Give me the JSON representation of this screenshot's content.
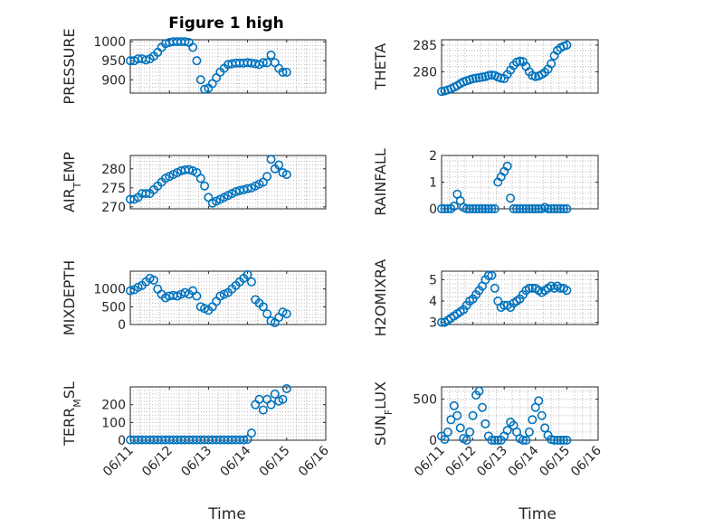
{
  "figure": {
    "title": "Figure 1 high",
    "xlabel": "Time",
    "xticks": [
      "06/11",
      "06/12",
      "06/13",
      "06/14",
      "06/15",
      "06/16"
    ],
    "marker_color": "#0072bd"
  },
  "chart_data": [
    {
      "type": "scatter",
      "ylabel": "PRESSURE",
      "xlim": [
        0,
        5
      ],
      "ylim": [
        865,
        1005
      ],
      "yticks": [
        900,
        950,
        1000
      ],
      "xtick_labels_visible": false,
      "title": "Figure 1 high",
      "x": [
        0,
        0.1,
        0.2,
        0.3,
        0.4,
        0.5,
        0.6,
        0.7,
        0.8,
        0.9,
        1.0,
        1.1,
        1.2,
        1.3,
        1.4,
        1.5,
        1.6,
        1.7,
        1.8,
        1.9,
        2.0,
        2.1,
        2.2,
        2.3,
        2.4,
        2.5,
        2.6,
        2.7,
        2.8,
        2.9,
        3.0,
        3.1,
        3.2,
        3.3,
        3.4,
        3.5,
        3.6,
        3.7,
        3.8,
        3.9,
        4.0
      ],
      "y": [
        950,
        950,
        955,
        955,
        952,
        955,
        962,
        972,
        985,
        995,
        998,
        1000,
        1000,
        1000,
        1000,
        998,
        985,
        950,
        900,
        875,
        878,
        890,
        905,
        920,
        930,
        940,
        942,
        944,
        944,
        944,
        945,
        944,
        942,
        940,
        945,
        945,
        965,
        945,
        930,
        920,
        920
      ]
    },
    {
      "type": "scatter",
      "ylabel": "THETA",
      "xlim": [
        0,
        5
      ],
      "ylim": [
        276,
        286
      ],
      "yticks": [
        280,
        285
      ],
      "xtick_labels_visible": false,
      "x": [
        0,
        0.1,
        0.2,
        0.3,
        0.4,
        0.5,
        0.6,
        0.7,
        0.8,
        0.9,
        1.0,
        1.1,
        1.2,
        1.3,
        1.4,
        1.5,
        1.6,
        1.7,
        1.8,
        1.9,
        2.0,
        2.1,
        2.2,
        2.3,
        2.4,
        2.5,
        2.6,
        2.7,
        2.8,
        2.9,
        3.0,
        3.1,
        3.2,
        3.3,
        3.4,
        3.5,
        3.6,
        3.7,
        3.8,
        3.9,
        4.0
      ],
      "y": [
        276.3,
        276.4,
        276.6,
        276.8,
        277.1,
        277.4,
        277.8,
        278.1,
        278.3,
        278.5,
        278.7,
        278.8,
        278.9,
        279.0,
        279.1,
        279.3,
        279.4,
        279.3,
        279.0,
        278.8,
        278.7,
        279.5,
        280.3,
        281.2,
        281.8,
        282.0,
        281.9,
        281.0,
        280.0,
        279.3,
        279.1,
        279.2,
        279.5,
        279.9,
        280.5,
        281.5,
        283.0,
        284.0,
        284.5,
        284.8,
        285.0
      ]
    },
    {
      "type": "scatter",
      "ylabel": "AIR_TEMP",
      "xlim": [
        0,
        5
      ],
      "ylim": [
        269.5,
        283.5
      ],
      "yticks": [
        270,
        275,
        280
      ],
      "xtick_labels_visible": false,
      "x": [
        0,
        0.1,
        0.2,
        0.3,
        0.4,
        0.5,
        0.6,
        0.7,
        0.8,
        0.9,
        1.0,
        1.1,
        1.2,
        1.3,
        1.4,
        1.5,
        1.6,
        1.7,
        1.8,
        1.9,
        2.0,
        2.1,
        2.2,
        2.3,
        2.4,
        2.5,
        2.6,
        2.7,
        2.8,
        2.9,
        3.0,
        3.1,
        3.2,
        3.3,
        3.4,
        3.5,
        3.6,
        3.7,
        3.8,
        3.9,
        4.0
      ],
      "y": [
        272,
        272,
        272.5,
        273.5,
        273.5,
        273.5,
        274.5,
        275.5,
        276.5,
        277.5,
        278,
        278.5,
        279,
        279.5,
        279.7,
        279.8,
        279.5,
        279,
        277.5,
        275.5,
        272.5,
        271,
        271.5,
        272,
        272.5,
        273,
        273.5,
        274,
        274.3,
        274.5,
        274.8,
        275,
        275.5,
        276,
        276.5,
        278,
        282.5,
        280,
        281,
        279,
        278.5
      ]
    },
    {
      "type": "scatter",
      "ylabel": "RAINFALL",
      "xlim": [
        0,
        5
      ],
      "ylim": [
        0,
        2
      ],
      "yticks": [
        0,
        1,
        2
      ],
      "xtick_labels_visible": false,
      "x": [
        0,
        0.1,
        0.2,
        0.3,
        0.4,
        0.5,
        0.6,
        0.7,
        0.8,
        0.9,
        1.0,
        1.1,
        1.2,
        1.3,
        1.4,
        1.5,
        1.6,
        1.7,
        1.8,
        1.9,
        2.0,
        2.1,
        2.2,
        2.3,
        2.4,
        2.5,
        2.6,
        2.7,
        2.8,
        2.9,
        3.0,
        3.1,
        3.2,
        3.3,
        3.4,
        3.5,
        3.6,
        3.7,
        3.8,
        3.9,
        4.0
      ],
      "y": [
        0,
        0,
        0,
        0,
        0.1,
        0.55,
        0.3,
        0.05,
        0,
        0,
        0,
        0,
        0,
        0,
        0,
        0,
        0,
        0,
        1.0,
        1.2,
        1.4,
        1.6,
        0.4,
        0,
        0,
        0,
        0,
        0,
        0,
        0,
        0,
        0,
        0,
        0.05,
        0,
        0,
        0,
        0,
        0,
        0,
        0
      ]
    },
    {
      "type": "scatter",
      "ylabel": "MIXDEPTH",
      "xlim": [
        0,
        5
      ],
      "ylim": [
        0,
        1500
      ],
      "yticks": [
        0,
        500,
        1000
      ],
      "xtick_labels_visible": false,
      "x": [
        0,
        0.1,
        0.2,
        0.3,
        0.4,
        0.5,
        0.6,
        0.7,
        0.8,
        0.9,
        1.0,
        1.1,
        1.2,
        1.3,
        1.4,
        1.5,
        1.6,
        1.7,
        1.8,
        1.9,
        2.0,
        2.1,
        2.2,
        2.3,
        2.4,
        2.5,
        2.6,
        2.7,
        2.8,
        2.9,
        3.0,
        3.1,
        3.2,
        3.3,
        3.4,
        3.5,
        3.6,
        3.7,
        3.8,
        3.9,
        4.0
      ],
      "y": [
        950,
        980,
        1050,
        1100,
        1200,
        1300,
        1250,
        1000,
        850,
        750,
        800,
        820,
        800,
        850,
        900,
        850,
        950,
        800,
        500,
        450,
        400,
        500,
        650,
        800,
        850,
        900,
        1000,
        1100,
        1200,
        1300,
        1400,
        1200,
        700,
        600,
        500,
        300,
        100,
        50,
        200,
        350,
        300
      ]
    },
    {
      "type": "scatter",
      "ylabel": "H2OMIXRA",
      "xlim": [
        0,
        5
      ],
      "ylim": [
        2.9,
        5.4
      ],
      "yticks": [
        3,
        4,
        5
      ],
      "xtick_labels_visible": false,
      "x": [
        0,
        0.1,
        0.2,
        0.3,
        0.4,
        0.5,
        0.6,
        0.7,
        0.8,
        0.9,
        1.0,
        1.1,
        1.2,
        1.3,
        1.4,
        1.5,
        1.6,
        1.7,
        1.8,
        1.9,
        2.0,
        2.1,
        2.2,
        2.3,
        2.4,
        2.5,
        2.6,
        2.7,
        2.8,
        2.9,
        3.0,
        3.1,
        3.2,
        3.3,
        3.4,
        3.5,
        3.6,
        3.7,
        3.8,
        3.9,
        4.0
      ],
      "y": [
        3.0,
        3.0,
        3.1,
        3.2,
        3.3,
        3.4,
        3.5,
        3.6,
        3.8,
        4.0,
        4.1,
        4.3,
        4.5,
        4.7,
        5.0,
        5.2,
        5.2,
        4.6,
        4.0,
        3.7,
        3.8,
        3.8,
        3.7,
        3.9,
        4.0,
        4.1,
        4.3,
        4.5,
        4.6,
        4.6,
        4.6,
        4.5,
        4.4,
        4.5,
        4.6,
        4.7,
        4.6,
        4.7,
        4.6,
        4.6,
        4.5
      ]
    },
    {
      "type": "scatter",
      "ylabel": "TERR_MSL",
      "xlim": [
        0,
        5
      ],
      "ylim": [
        0,
        300
      ],
      "yticks": [
        0,
        100,
        200
      ],
      "xtick_labels_visible": true,
      "x": [
        0,
        0.1,
        0.2,
        0.3,
        0.4,
        0.5,
        0.6,
        0.7,
        0.8,
        0.9,
        1.0,
        1.1,
        1.2,
        1.3,
        1.4,
        1.5,
        1.6,
        1.7,
        1.8,
        1.9,
        2.0,
        2.1,
        2.2,
        2.3,
        2.4,
        2.5,
        2.6,
        2.7,
        2.8,
        2.9,
        3.0,
        3.1,
        3.2,
        3.3,
        3.4,
        3.5,
        3.6,
        3.7,
        3.8,
        3.9,
        4.0
      ],
      "y": [
        2,
        2,
        2,
        2,
        2,
        2,
        2,
        2,
        2,
        2,
        2,
        2,
        2,
        2,
        2,
        2,
        2,
        2,
        2,
        2,
        2,
        2,
        2,
        2,
        2,
        2,
        2,
        2,
        2,
        2,
        5,
        40,
        200,
        230,
        170,
        230,
        200,
        260,
        220,
        230,
        290
      ]
    },
    {
      "type": "scatter",
      "ylabel": "SUN_FLUX",
      "xlim": [
        0,
        5
      ],
      "ylim": [
        0,
        650
      ],
      "yticks": [
        0,
        500
      ],
      "xtick_labels_visible": true,
      "x": [
        0,
        0.1,
        0.2,
        0.3,
        0.4,
        0.5,
        0.6,
        0.7,
        0.8,
        0.9,
        1.0,
        1.1,
        1.2,
        1.3,
        1.4,
        1.5,
        1.6,
        1.7,
        1.8,
        1.9,
        2.0,
        2.1,
        2.2,
        2.3,
        2.4,
        2.5,
        2.6,
        2.7,
        2.8,
        2.9,
        3.0,
        3.1,
        3.2,
        3.3,
        3.4,
        3.5,
        3.6,
        3.7,
        3.8,
        3.9,
        4.0
      ],
      "y": [
        50,
        10,
        100,
        250,
        420,
        300,
        150,
        20,
        0,
        100,
        300,
        550,
        600,
        400,
        200,
        50,
        0,
        0,
        0,
        0,
        50,
        120,
        220,
        180,
        100,
        20,
        0,
        0,
        100,
        250,
        400,
        480,
        300,
        150,
        60,
        10,
        0,
        0,
        0,
        0,
        0
      ]
    }
  ]
}
